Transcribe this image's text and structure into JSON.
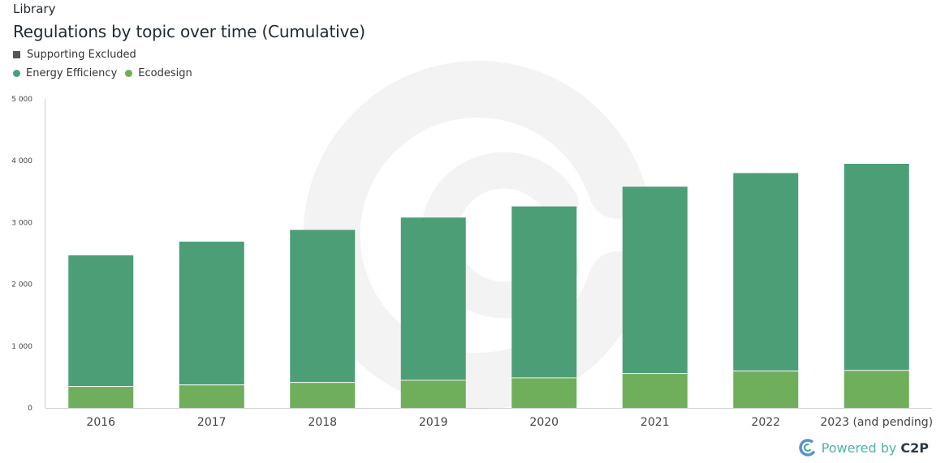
{
  "header": {
    "breadcrumb": "Library",
    "title": "Regulations by topic over time (Cumulative)"
  },
  "legend": {
    "excluded": "Supporting Excluded",
    "items": [
      "Energy Efficiency",
      "Ecodesign"
    ]
  },
  "colors": {
    "energy_efficiency": "#4c9e76",
    "ecodesign": "#6fae5b",
    "excluded": "#555555",
    "watermark": "#f3f3f3",
    "tick_text": "#444444",
    "axis_line": "#cccccc",
    "brand_icon_outer": "#5b8fd1",
    "brand_icon_inner": "#4fb3a6"
  },
  "brand": {
    "powered": "Powered by",
    "name": "C2P",
    "icon": "c2p-logo-icon"
  },
  "chart_data": {
    "type": "bar",
    "stacked": true,
    "categories": [
      "2016",
      "2017",
      "2018",
      "2019",
      "2020",
      "2021",
      "2022",
      "2023 (and pending)"
    ],
    "series": [
      {
        "name": "Ecodesign",
        "values": [
          340,
          365,
          405,
          440,
          480,
          550,
          590,
          600
        ]
      },
      {
        "name": "Energy Efficiency",
        "values": [
          2130,
          2325,
          2475,
          2640,
          2780,
          3030,
          3210,
          3350
        ]
      }
    ],
    "ylim": [
      0,
      5000
    ],
    "yticks": [
      0,
      1000,
      2000,
      3000,
      4000,
      5000
    ],
    "ytick_labels": [
      "0",
      "1 000",
      "2 000",
      "3 000",
      "4 000",
      "5 000"
    ],
    "grid": false,
    "legend_position": "top-left"
  }
}
